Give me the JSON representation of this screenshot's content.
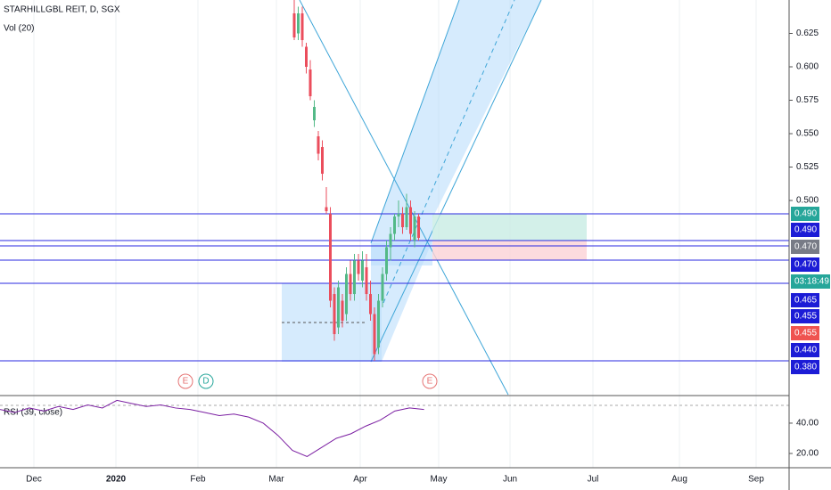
{
  "header": {
    "symbol": "STARHILLGBL REIT, D, SGX",
    "volume": "Vol (20)",
    "rsi": "RSI (39, close)"
  },
  "events": [
    "E",
    "D",
    "E"
  ],
  "price_tags": [
    "0.490",
    "0.490",
    "0.470",
    "0.470",
    "03:18:49",
    "0.465",
    "0.455",
    "0.455",
    "0.440",
    "0.380"
  ],
  "time_labels": [
    "Dec",
    "2020",
    "Feb",
    "Mar",
    "Apr",
    "May",
    "Jun",
    "Jul",
    "Aug",
    "Sep"
  ],
  "chart_data": {
    "type": "candlestick",
    "ylim": [
      0.3547,
      0.65
    ],
    "yticks": [
      0.5,
      0.525,
      0.55,
      0.575,
      0.6,
      0.625
    ],
    "yticklabels": [
      "0.500",
      "0.525",
      "0.550",
      "0.575",
      "0.600",
      "0.625"
    ],
    "colors": {
      "up": "#53b987",
      "down": "#eb4d5c"
    },
    "open": [
      0.64,
      0.625,
      0.64,
      0.615,
      0.598,
      0.56,
      0.548,
      0.54,
      0.495,
      0.49,
      0.43,
      0.405,
      0.425,
      0.415,
      0.445,
      0.43,
      0.455,
      0.44,
      0.45,
      0.43,
      0.415,
      0.39,
      0.425,
      0.445,
      0.465,
      0.475,
      0.488,
      0.49,
      0.48,
      0.495,
      0.47,
      0.488
    ],
    "high": [
      0.65,
      0.645,
      0.645,
      0.618,
      0.605,
      0.575,
      0.552,
      0.545,
      0.51,
      0.495,
      0.435,
      0.44,
      0.43,
      0.45,
      0.455,
      0.46,
      0.46,
      0.462,
      0.46,
      0.44,
      0.42,
      0.43,
      0.45,
      0.47,
      0.48,
      0.49,
      0.5,
      0.495,
      0.505,
      0.5,
      0.492,
      0.49
    ],
    "low": [
      0.62,
      0.62,
      0.615,
      0.595,
      0.575,
      0.555,
      0.53,
      0.515,
      0.49,
      0.42,
      0.395,
      0.4,
      0.405,
      0.41,
      0.425,
      0.425,
      0.44,
      0.435,
      0.425,
      0.41,
      0.38,
      0.385,
      0.42,
      0.44,
      0.455,
      0.47,
      0.48,
      0.475,
      0.478,
      0.47,
      0.465,
      0.47
    ],
    "close": [
      0.622,
      0.64,
      0.62,
      0.6,
      0.578,
      0.57,
      0.535,
      0.52,
      0.492,
      0.425,
      0.4,
      0.435,
      0.41,
      0.445,
      0.43,
      0.455,
      0.445,
      0.455,
      0.43,
      0.415,
      0.385,
      0.425,
      0.445,
      0.465,
      0.475,
      0.488,
      0.49,
      0.48,
      0.495,
      0.475,
      0.488,
      0.472
    ]
  },
  "rsi_data": {
    "type": "line",
    "color": "#7b1fa2",
    "ylim": [
      10.6,
      57.6
    ],
    "yticks": [
      20,
      40
    ],
    "yticklabels": [
      "20.00",
      "40.00"
    ],
    "values": [
      49,
      47,
      50,
      48,
      51,
      49,
      52,
      50,
      55,
      53,
      51,
      52,
      50,
      49,
      47,
      45,
      46,
      44,
      40,
      32,
      22,
      18,
      24,
      30,
      33,
      38,
      42,
      48,
      50,
      49
    ]
  }
}
